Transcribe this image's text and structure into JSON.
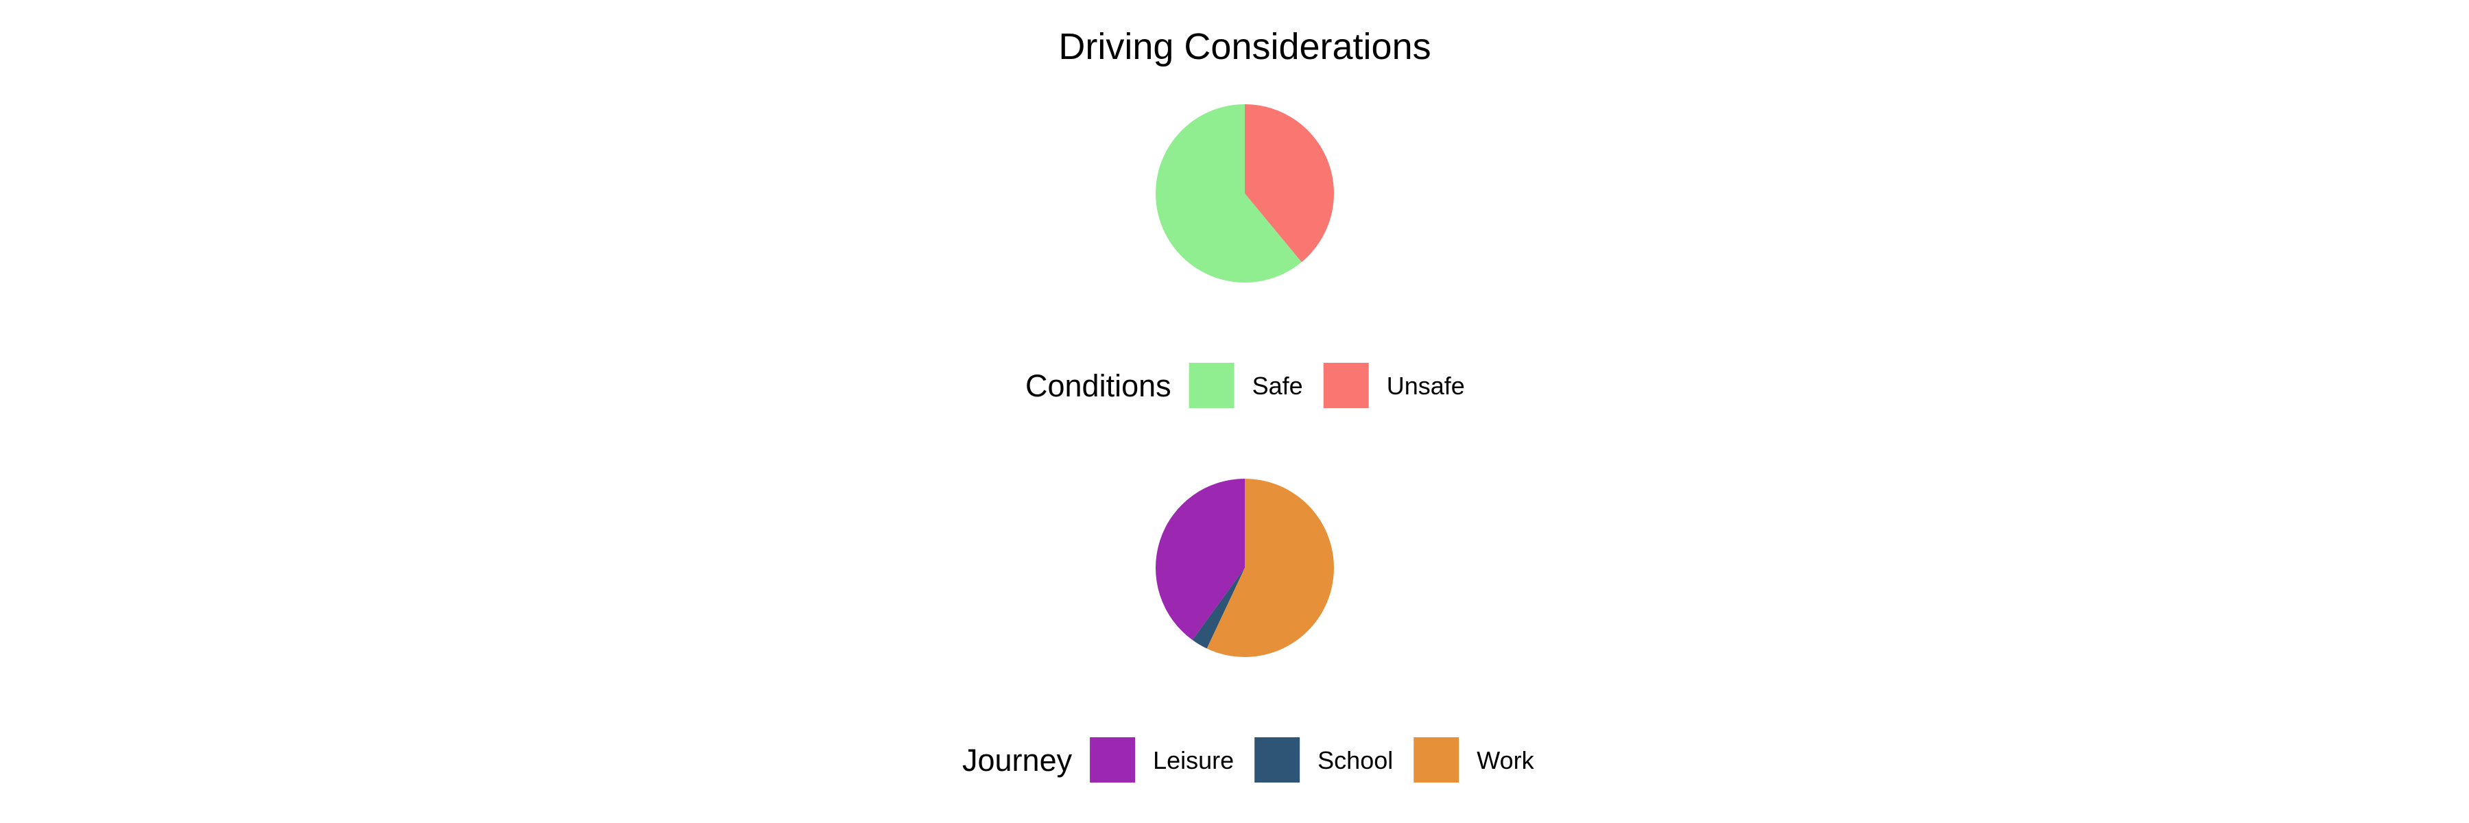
{
  "chart_data": {
    "title": "Driving Considerations",
    "charts": [
      {
        "type": "pie",
        "legend_title": "Conditions",
        "legend_position": "bottom",
        "slices": [
          {
            "label": "Safe",
            "value": 61,
            "color": "#90EE90"
          },
          {
            "label": "Unsafe",
            "value": 39,
            "color": "#FA7670"
          }
        ]
      },
      {
        "type": "pie",
        "legend_title": "Journey",
        "legend_position": "bottom",
        "slices": [
          {
            "label": "Leisure",
            "value": 40,
            "color": "#9C27B0"
          },
          {
            "label": "School",
            "value": 3,
            "color": "#2F5576"
          },
          {
            "label": "Work",
            "value": 57,
            "color": "#E6903A"
          }
        ]
      }
    ]
  }
}
